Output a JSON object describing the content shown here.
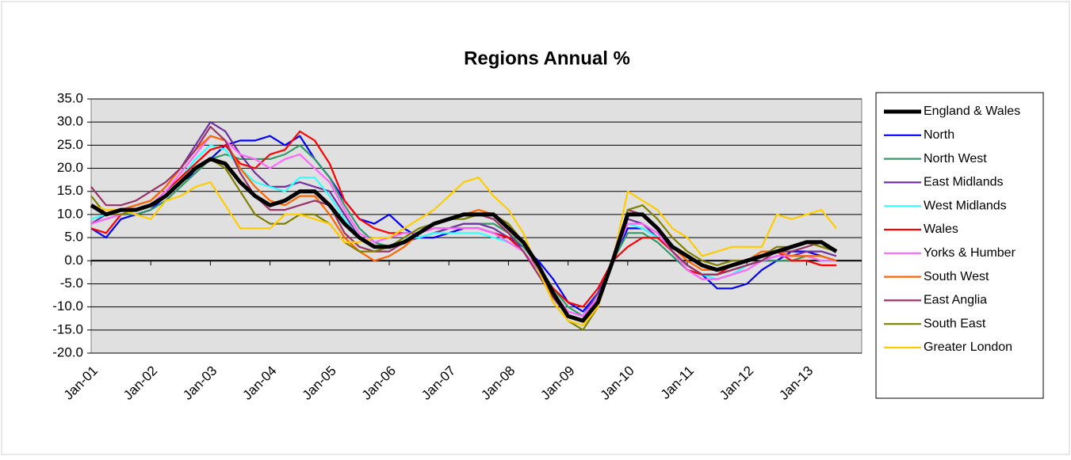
{
  "chart_data": {
    "type": "line",
    "title": "Regions Annual %",
    "categories": [
      "Jan-01",
      null,
      null,
      null,
      "Jan-02",
      null,
      null,
      null,
      "Jan-03",
      null,
      null,
      null,
      "Jan-04",
      null,
      null,
      null,
      "Jan-05",
      null,
      null,
      null,
      "Jan-06",
      null,
      null,
      null,
      "Jan-07",
      null,
      null,
      null,
      "Jan-08",
      null,
      null,
      null,
      "Jan-09",
      null,
      null,
      null,
      "Jan-10",
      null,
      null,
      null,
      "Jan-11",
      null,
      null,
      null,
      "Jan-12",
      null,
      null,
      null,
      "Jan-13",
      null,
      null
    ],
    "ylim": [
      -20,
      35
    ],
    "yticks": [
      {
        "value": -20,
        "label": "-20.0"
      },
      {
        "value": -15,
        "label": "-15.0"
      },
      {
        "value": -10,
        "label": "-10.0"
      },
      {
        "value": -5,
        "label": "-5.0"
      },
      {
        "value": 0,
        "label": "0.0"
      },
      {
        "value": 5,
        "label": "5.0"
      },
      {
        "value": 10,
        "label": "10.0"
      },
      {
        "value": 15,
        "label": "15.0"
      },
      {
        "value": 20,
        "label": "20.0"
      },
      {
        "value": 25,
        "label": "25.0"
      },
      {
        "value": 30,
        "label": "30.0"
      },
      {
        "value": 35,
        "label": "35.0"
      }
    ],
    "grid": true,
    "legend": "right",
    "series": [
      {
        "name": "England & Wales",
        "color": "#000000",
        "values": [
          12,
          10,
          11,
          11,
          12,
          14,
          17,
          20,
          22,
          21,
          17,
          14,
          12,
          13,
          15,
          15,
          12,
          8,
          5,
          3,
          3,
          4,
          6,
          8,
          9,
          10,
          10,
          10,
          7,
          4,
          -1,
          -7,
          -12,
          -13,
          -9,
          0,
          10,
          10,
          7,
          3,
          1,
          -1,
          -2,
          -1,
          0,
          1,
          2,
          3,
          4,
          4,
          2
        ]
      },
      {
        "name": "North",
        "color": "#0000ff",
        "values": [
          7,
          5,
          9,
          10,
          11,
          14,
          17,
          19,
          22,
          25,
          26,
          26,
          27,
          25,
          27,
          22,
          18,
          13,
          9,
          8,
          10,
          7,
          5,
          5,
          6,
          7,
          7,
          6,
          5,
          3,
          0,
          -4,
          -9,
          -11,
          -7,
          0,
          7,
          7,
          5,
          2,
          -1,
          -3,
          -6,
          -6,
          -5,
          -2,
          0,
          2,
          2,
          1,
          0
        ]
      },
      {
        "name": "North West",
        "color": "#339966",
        "values": [
          8,
          9,
          10,
          10,
          11,
          13,
          16,
          19,
          22,
          23,
          22,
          22,
          22,
          23,
          25,
          22,
          18,
          12,
          7,
          4,
          3,
          4,
          5,
          6,
          7,
          8,
          8,
          8,
          6,
          3,
          -1,
          -6,
          -10,
          -12,
          -8,
          0,
          6,
          6,
          4,
          1,
          -2,
          -4,
          -4,
          -3,
          -1,
          0,
          0,
          0,
          1,
          1,
          0
        ]
      },
      {
        "name": "East Midlands",
        "color": "#7030a0",
        "values": [
          8,
          10,
          11,
          12,
          13,
          16,
          20,
          25,
          30,
          28,
          23,
          19,
          16,
          16,
          17,
          16,
          15,
          10,
          5,
          3,
          3,
          4,
          5,
          6,
          7,
          8,
          8,
          7,
          5,
          2,
          -2,
          -7,
          -11,
          -12,
          -7,
          0,
          9,
          8,
          5,
          2,
          -2,
          -3,
          -3,
          -2,
          -1,
          0,
          1,
          1,
          2,
          2,
          1
        ]
      },
      {
        "name": "West Midlands",
        "color": "#33ffff",
        "values": [
          9,
          10,
          11,
          11,
          12,
          14,
          18,
          22,
          25,
          24,
          20,
          17,
          16,
          15,
          18,
          18,
          14,
          9,
          5,
          3,
          3,
          5,
          5,
          6,
          6,
          6,
          6,
          5,
          4,
          2,
          -2,
          -7,
          -11,
          -12,
          -8,
          0,
          8,
          7,
          5,
          2,
          -2,
          -3,
          -4,
          -3,
          -1,
          0,
          1,
          1,
          1,
          0,
          0
        ]
      },
      {
        "name": "Wales",
        "color": "#ff0000",
        "values": [
          7,
          6,
          10,
          11,
          12,
          15,
          18,
          21,
          24,
          25,
          21,
          20,
          23,
          24,
          28,
          26,
          21,
          13,
          9,
          7,
          6,
          6,
          6,
          7,
          7,
          7,
          7,
          6,
          5,
          2,
          -2,
          -6,
          -9,
          -10,
          -6,
          0,
          3,
          5,
          5,
          2,
          -2,
          -3,
          -3,
          -1,
          0,
          1,
          2,
          0,
          0,
          -1,
          -1
        ]
      },
      {
        "name": "Yorks & Humber",
        "color": "#ff66ff",
        "values": [
          8,
          9,
          10,
          11,
          12,
          15,
          19,
          23,
          27,
          26,
          23,
          22,
          20,
          22,
          23,
          20,
          17,
          11,
          6,
          4,
          5,
          6,
          6,
          7,
          7,
          7,
          7,
          6,
          4,
          2,
          -2,
          -7,
          -11,
          -12,
          -8,
          0,
          8,
          8,
          6,
          2,
          -2,
          -4,
          -4,
          -3,
          -2,
          0,
          1,
          1,
          1,
          0,
          0
        ]
      },
      {
        "name": "South West",
        "color": "#ff6600",
        "values": [
          12,
          11,
          11,
          12,
          13,
          16,
          20,
          24,
          27,
          26,
          20,
          16,
          13,
          12,
          14,
          14,
          10,
          5,
          2,
          0,
          1,
          3,
          6,
          8,
          9,
          10,
          11,
          10,
          8,
          4,
          -2,
          -8,
          -12,
          -13,
          -9,
          0,
          10,
          10,
          7,
          3,
          0,
          -2,
          -2,
          -1,
          0,
          2,
          2,
          1,
          1,
          1,
          0
        ]
      },
      {
        "name": "East Anglia",
        "color": "#993366",
        "values": [
          16,
          12,
          12,
          13,
          15,
          17,
          20,
          24,
          29,
          26,
          19,
          14,
          11,
          11,
          12,
          13,
          12,
          6,
          3,
          2,
          2,
          4,
          6,
          8,
          9,
          10,
          10,
          9,
          6,
          2,
          -3,
          -8,
          -12,
          -13,
          -9,
          0,
          11,
          10,
          7,
          2,
          -1,
          -3,
          -3,
          -2,
          -1,
          0,
          2,
          2,
          3,
          4,
          2
        ]
      },
      {
        "name": "South East",
        "color": "#808000",
        "values": [
          14,
          10,
          10,
          11,
          12,
          14,
          17,
          20,
          22,
          20,
          15,
          10,
          8,
          8,
          10,
          10,
          8,
          4,
          2,
          2,
          3,
          5,
          7,
          8,
          9,
          9,
          10,
          10,
          8,
          4,
          -2,
          -9,
          -13,
          -15,
          -10,
          0,
          11,
          12,
          9,
          5,
          2,
          0,
          -1,
          0,
          0,
          1,
          3,
          3,
          4,
          3,
          2
        ]
      },
      {
        "name": "Greater London",
        "color": "#ffcc00",
        "values": [
          12,
          11,
          11,
          10,
          9,
          13,
          14,
          16,
          17,
          12,
          7,
          7,
          7,
          10,
          10,
          9,
          8,
          4,
          4,
          5,
          5,
          7,
          9,
          11,
          14,
          17,
          18,
          14,
          11,
          6,
          -2,
          -9,
          -13,
          -14,
          -10,
          0,
          15,
          13,
          11,
          7,
          5,
          1,
          2,
          3,
          3,
          3,
          10,
          9,
          10,
          11,
          7
        ]
      }
    ]
  }
}
